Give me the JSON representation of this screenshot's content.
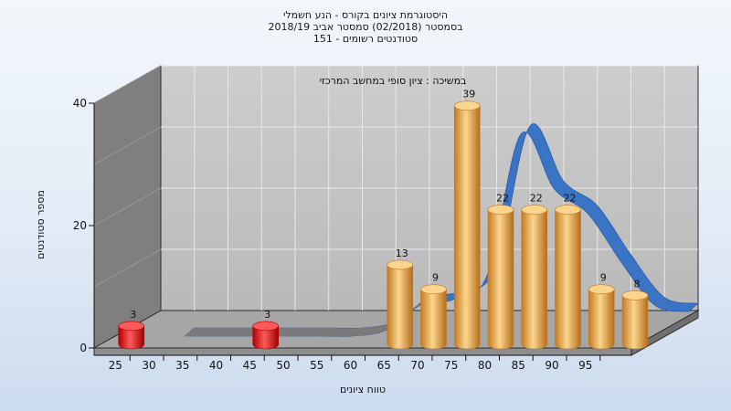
{
  "chart_data": {
    "type": "bar",
    "title_lines": [
      "היסטוגרמת ציונים בקורס - הנע חשמלי",
      "בסמסטר  (02/2018)  סמסטר אביב 2018/19",
      "סטודנטים רשומים - 151"
    ],
    "annotation": "במשיכה : ציון סופי במחשב המרכזי",
    "xlabel": "טווח ציונים",
    "ylabel": "מספר סטודנטים",
    "ylim": [
      0,
      40
    ],
    "yticks": [
      "0",
      "20",
      "40"
    ],
    "categories": [
      "25",
      "30",
      "35",
      "40",
      "45",
      "50",
      "55",
      "60",
      "65",
      "70",
      "75",
      "80",
      "85",
      "90",
      "95"
    ],
    "bars": [
      {
        "x": 25,
        "value": 3,
        "label": "3",
        "color": "red"
      },
      {
        "x": 45,
        "value": 3,
        "label": "3",
        "color": "red"
      },
      {
        "x": 65,
        "value": 13,
        "label": "13",
        "color": "orange"
      },
      {
        "x": 70,
        "value": 9,
        "label": "9",
        "color": "orange"
      },
      {
        "x": 75,
        "value": 39,
        "label": "39",
        "color": "orange"
      },
      {
        "x": 80,
        "value": 22,
        "label": "22",
        "color": "orange"
      },
      {
        "x": 85,
        "value": 22,
        "label": "22",
        "color": "orange"
      },
      {
        "x": 90,
        "value": 22,
        "label": "22",
        "color": "orange"
      },
      {
        "x": 95,
        "value": 9,
        "label": "9",
        "color": "orange"
      },
      {
        "x": 100,
        "value": 8,
        "label": "8",
        "color": "orange"
      }
    ],
    "curve": {
      "x": [
        30,
        35,
        40,
        45,
        50,
        55,
        60,
        65,
        70,
        75,
        80,
        85,
        90,
        95,
        100,
        105
      ],
      "y": [
        0,
        0,
        0,
        0,
        0,
        0,
        1,
        5,
        6,
        10,
        33,
        24,
        20,
        12,
        5,
        4
      ],
      "colors": {
        "hidden": "#7a7a7a",
        "visible": "#3a74c4"
      }
    },
    "colors": {
      "bar_orange_light": "#fbd58e",
      "bar_orange_dark": "#c47a20",
      "bar_red_light": "#ff5a5a",
      "bar_red_dark": "#b00000",
      "back_wall": "#c2c2c2",
      "side_wall": "#7f7f7f",
      "floor": "#a6a6a6"
    },
    "grid": true
  }
}
